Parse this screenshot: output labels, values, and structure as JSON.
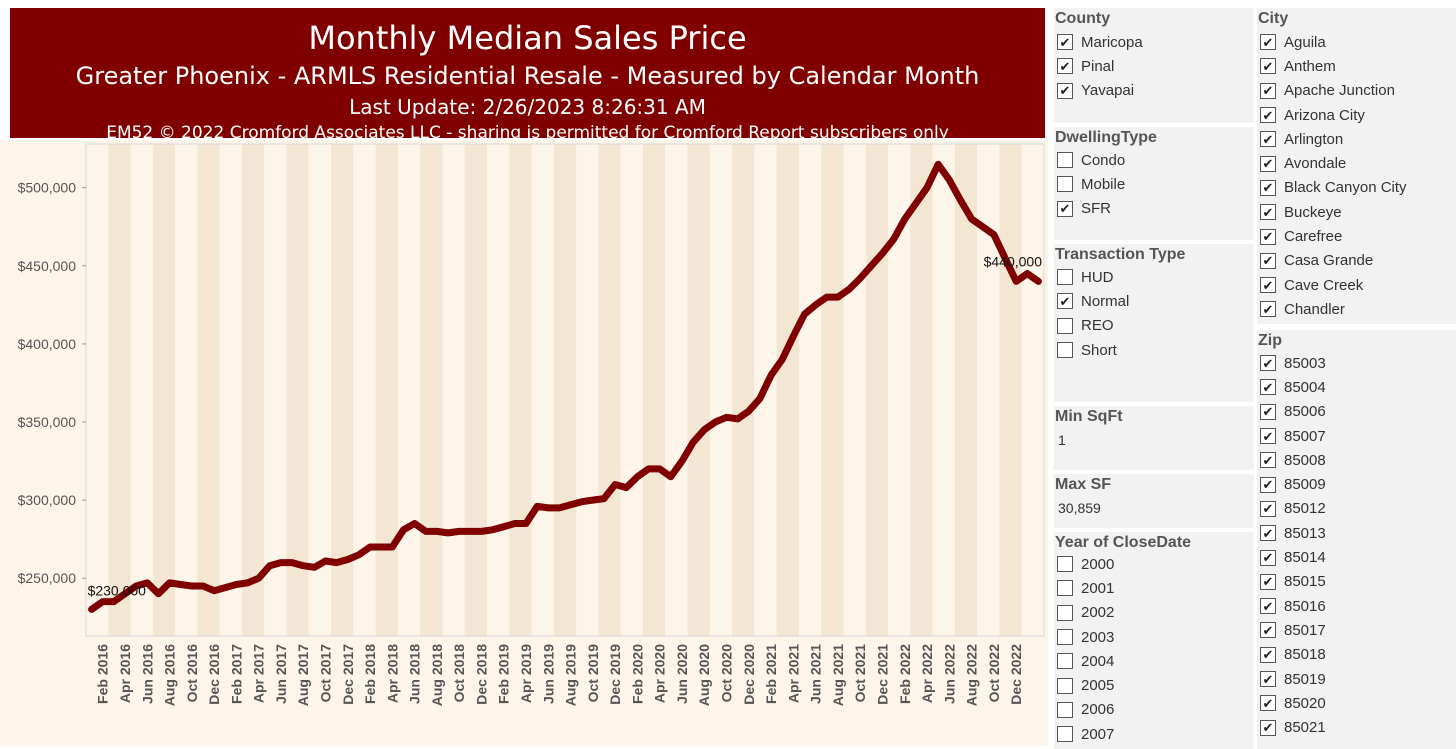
{
  "header": {
    "title": "Monthly Median Sales Price",
    "subtitle": "Greater Phoenix - ARMLS Residential Resale - Measured by Calendar Month",
    "update": "Last Update: 2/26/2023 8:26:31 AM",
    "copyright": "EM52 © 2022 Cromford Associates LLC - sharing is permitted for Cromford Report subscribers only"
  },
  "chart_data": {
    "type": "line",
    "x": [
      "Jan 2016",
      "Feb 2016",
      "Mar 2016",
      "Apr 2016",
      "May 2016",
      "Jun 2016",
      "Jul 2016",
      "Aug 2016",
      "Sep 2016",
      "Oct 2016",
      "Nov 2016",
      "Dec 2016",
      "Jan 2017",
      "Feb 2017",
      "Mar 2017",
      "Apr 2017",
      "May 2017",
      "Jun 2017",
      "Jul 2017",
      "Aug 2017",
      "Sep 2017",
      "Oct 2017",
      "Nov 2017",
      "Dec 2017",
      "Jan 2018",
      "Feb 2018",
      "Mar 2018",
      "Apr 2018",
      "May 2018",
      "Jun 2018",
      "Jul 2018",
      "Aug 2018",
      "Sep 2018",
      "Oct 2018",
      "Nov 2018",
      "Dec 2018",
      "Jan 2019",
      "Feb 2019",
      "Mar 2019",
      "Apr 2019",
      "May 2019",
      "Jun 2019",
      "Jul 2019",
      "Aug 2019",
      "Sep 2019",
      "Oct 2019",
      "Nov 2019",
      "Dec 2019",
      "Jan 2020",
      "Feb 2020",
      "Mar 2020",
      "Apr 2020",
      "May 2020",
      "Jun 2020",
      "Jul 2020",
      "Aug 2020",
      "Sep 2020",
      "Oct 2020",
      "Nov 2020",
      "Dec 2020",
      "Jan 2021",
      "Feb 2021",
      "Mar 2021",
      "Apr 2021",
      "May 2021",
      "Jun 2021",
      "Jul 2021",
      "Aug 2021",
      "Sep 2021",
      "Oct 2021",
      "Nov 2021",
      "Dec 2021",
      "Jan 2022",
      "Feb 2022",
      "Mar 2022",
      "Apr 2022",
      "May 2022",
      "Jun 2022",
      "Jul 2022",
      "Aug 2022",
      "Sep 2022",
      "Oct 2022",
      "Nov 2022",
      "Dec 2022",
      "Jan 2023",
      "Feb 2023"
    ],
    "series": [
      {
        "name": "",
        "color": "#800000",
        "values": [
          230000,
          235000,
          235000,
          240000,
          245000,
          247000,
          240000,
          247000,
          246000,
          245000,
          245000,
          242000,
          244000,
          246000,
          247000,
          250000,
          258000,
          260000,
          260000,
          258000,
          257000,
          261000,
          260000,
          262000,
          265000,
          270000,
          270000,
          270000,
          281000,
          285000,
          280000,
          280000,
          279000,
          280000,
          280000,
          280000,
          281000,
          283000,
          285000,
          285000,
          296000,
          295000,
          295000,
          297000,
          299000,
          300000,
          301000,
          310000,
          308000,
          315000,
          320000,
          320000,
          315000,
          325000,
          337000,
          345000,
          350000,
          353000,
          352000,
          357000,
          365000,
          380000,
          390000,
          405000,
          419000,
          425000,
          430000,
          430000,
          435000,
          442000,
          450000,
          458000,
          467000,
          480000,
          490000,
          500000,
          515000,
          505000,
          492000,
          480000,
          475000,
          470000,
          455000,
          440000,
          445000,
          440000
        ],
        "start_label": "$230,000",
        "end_label": "$440,000"
      }
    ],
    "x_tick_labels": [
      "Feb 2016",
      "Apr 2016",
      "Jun 2016",
      "Aug 2016",
      "Oct 2016",
      "Dec 2016",
      "Feb 2017",
      "Apr 2017",
      "Jun 2017",
      "Aug 2017",
      "Oct 2017",
      "Dec 2017",
      "Feb 2018",
      "Apr 2018",
      "Jun 2018",
      "Aug 2018",
      "Oct 2018",
      "Dec 2018",
      "Feb 2019",
      "Apr 2019",
      "Jun 2019",
      "Aug 2019",
      "Oct 2019",
      "Dec 2019",
      "Feb 2020",
      "Apr 2020",
      "Jun 2020",
      "Aug 2020",
      "Oct 2020",
      "Dec 2020",
      "Feb 2021",
      "Apr 2021",
      "Jun 2021",
      "Aug 2021",
      "Oct 2021",
      "Dec 2021",
      "Feb 2022",
      "Apr 2022",
      "Jun 2022",
      "Aug 2022",
      "Oct 2022",
      "Dec 2022"
    ],
    "y_ticks": [
      250000,
      300000,
      350000,
      400000,
      450000,
      500000
    ],
    "y_tick_labels": [
      "$250,000",
      "$300,000",
      "$350,000",
      "$400,000",
      "$450,000",
      "$500,000"
    ],
    "ylim": [
      213000,
      528000
    ],
    "grid": false,
    "band_colors": [
      "#fdf5ea",
      "#f3e6d2"
    ]
  },
  "filters": {
    "county": {
      "title": "County",
      "items": [
        {
          "label": "Maricopa",
          "checked": true
        },
        {
          "label": "Pinal",
          "checked": true
        },
        {
          "label": "Yavapai",
          "checked": true
        }
      ]
    },
    "dwelling": {
      "title": "DwellingType",
      "items": [
        {
          "label": "Condo",
          "checked": false
        },
        {
          "label": "Mobile",
          "checked": false
        },
        {
          "label": "SFR",
          "checked": true
        }
      ]
    },
    "transaction": {
      "title": "Transaction Type",
      "items": [
        {
          "label": "HUD",
          "checked": false
        },
        {
          "label": "Normal",
          "checked": true
        },
        {
          "label": "REO",
          "checked": false
        },
        {
          "label": "Short",
          "checked": false
        }
      ]
    },
    "min_sqft": {
      "title": "Min SqFt",
      "value": "1"
    },
    "max_sf": {
      "title": "Max SF",
      "value": "30,859"
    },
    "year": {
      "title": "Year of CloseDate",
      "items": [
        {
          "label": "2000",
          "checked": false
        },
        {
          "label": "2001",
          "checked": false
        },
        {
          "label": "2002",
          "checked": false
        },
        {
          "label": "2003",
          "checked": false
        },
        {
          "label": "2004",
          "checked": false
        },
        {
          "label": "2005",
          "checked": false
        },
        {
          "label": "2006",
          "checked": false
        },
        {
          "label": "2007",
          "checked": false
        }
      ]
    },
    "city": {
      "title": "City",
      "items": [
        {
          "label": "Aguila",
          "checked": true
        },
        {
          "label": "Anthem",
          "checked": true
        },
        {
          "label": "Apache Junction",
          "checked": true
        },
        {
          "label": "Arizona City",
          "checked": true
        },
        {
          "label": "Arlington",
          "checked": true
        },
        {
          "label": "Avondale",
          "checked": true
        },
        {
          "label": "Black Canyon City",
          "checked": true
        },
        {
          "label": "Buckeye",
          "checked": true
        },
        {
          "label": "Carefree",
          "checked": true
        },
        {
          "label": "Casa Grande",
          "checked": true
        },
        {
          "label": "Cave Creek",
          "checked": true
        },
        {
          "label": "Chandler",
          "checked": true
        }
      ]
    },
    "zip": {
      "title": "Zip",
      "items": [
        {
          "label": "85003",
          "checked": true
        },
        {
          "label": "85004",
          "checked": true
        },
        {
          "label": "85006",
          "checked": true
        },
        {
          "label": "85007",
          "checked": true
        },
        {
          "label": "85008",
          "checked": true
        },
        {
          "label": "85009",
          "checked": true
        },
        {
          "label": "85012",
          "checked": true
        },
        {
          "label": "85013",
          "checked": true
        },
        {
          "label": "85014",
          "checked": true
        },
        {
          "label": "85015",
          "checked": true
        },
        {
          "label": "85016",
          "checked": true
        },
        {
          "label": "85017",
          "checked": true
        },
        {
          "label": "85018",
          "checked": true
        },
        {
          "label": "85019",
          "checked": true
        },
        {
          "label": "85020",
          "checked": true
        },
        {
          "label": "85021",
          "checked": true
        }
      ]
    }
  }
}
